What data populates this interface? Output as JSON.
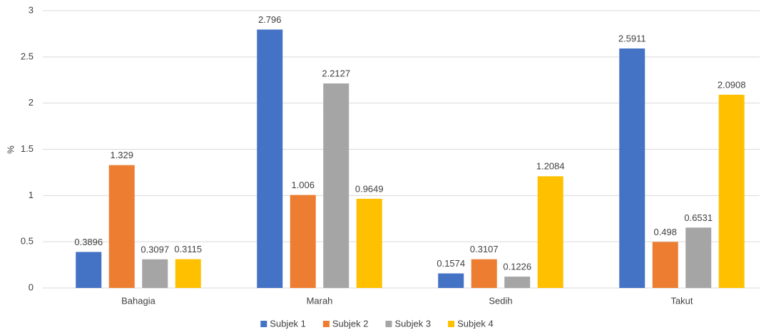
{
  "chart_data": {
    "type": "bar",
    "y_label": "%",
    "categories": [
      "Bahagia",
      "Marah",
      "Sedih",
      "Takut"
    ],
    "series": [
      {
        "name": "Subjek 1",
        "color": "#4472c4",
        "values": [
          0.3896,
          2.796,
          0.1574,
          2.5911
        ]
      },
      {
        "name": "Subjek 2",
        "color": "#ed7d31",
        "values": [
          1.329,
          1.006,
          0.3107,
          0.498
        ]
      },
      {
        "name": "Subjek 3",
        "color": "#a5a5a5",
        "values": [
          0.3097,
          2.2127,
          0.1226,
          0.6531
        ]
      },
      {
        "name": "Subjek 4",
        "color": "#ffc000",
        "values": [
          0.3115,
          0.9649,
          1.2084,
          2.0908
        ]
      }
    ],
    "ylim": [
      0,
      3
    ],
    "yticks": [
      0,
      0.5,
      1,
      1.5,
      2,
      2.5,
      3
    ],
    "grid": true,
    "legend": "bottom"
  }
}
